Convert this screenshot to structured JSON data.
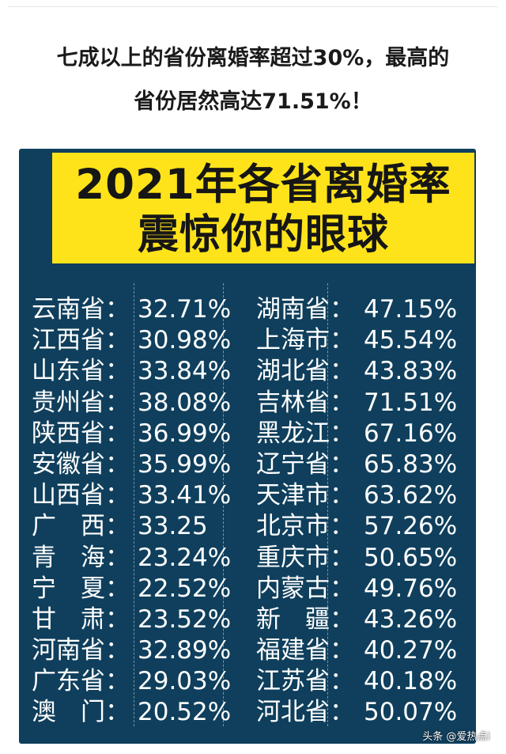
{
  "headline": {
    "line1": "七成以上的省份离婚率超过30%，最高的",
    "line2": "省份居然高达71.51%！"
  },
  "poster": {
    "banner_line1": "2021年各省离婚率",
    "banner_line2": "震惊你的眼球",
    "background_color": "#0f3f5c",
    "banner_color": "#ffe31a",
    "rows": [
      {
        "left_name": "云南省：",
        "left_value": "32.71%",
        "right_name": "湖南省：",
        "right_value": "47.15%"
      },
      {
        "left_name": "江西省：",
        "left_value": "30.98%",
        "right_name": "上海市：",
        "right_value": "45.54%"
      },
      {
        "left_name": "山东省：",
        "left_value": "33.84%",
        "right_name": "湖北省：",
        "right_value": "43.83%"
      },
      {
        "left_name": "贵州省：",
        "left_value": "38.08%",
        "right_name": "吉林省：",
        "right_value": "71.51%"
      },
      {
        "left_name": "陕西省：",
        "left_value": "36.99%",
        "right_name": "黑龙江：",
        "right_value": "67.16%"
      },
      {
        "left_name": "安徽省：",
        "left_value": "35.99%",
        "right_name": "辽宁省：",
        "right_value": "65.83%"
      },
      {
        "left_name": "山西省：",
        "left_value": "33.41%",
        "right_name": "天津市：",
        "right_value": "63.62%"
      },
      {
        "left_name": "广　西：",
        "left_value": "33.25",
        "right_name": "北京市：",
        "right_value": "57.26%"
      },
      {
        "left_name": "青　海：",
        "left_value": "23.24%",
        "right_name": "重庆市：",
        "right_value": "50.65%"
      },
      {
        "left_name": "宁　夏：",
        "left_value": "22.52%",
        "right_name": "内蒙古：",
        "right_value": "49.76%"
      },
      {
        "left_name": "甘　肃：",
        "left_value": "23.52%",
        "right_name": "新　疆：",
        "right_value": "43.26%"
      },
      {
        "left_name": "河南省：",
        "left_value": "32.89%",
        "right_name": "福建省：",
        "right_value": "40.27%"
      },
      {
        "left_name": "广东省：",
        "left_value": "29.03%",
        "right_name": "江苏省：",
        "right_value": "40.18%"
      },
      {
        "left_name": "澳　门：",
        "left_value": "20.52%",
        "right_name": "河北省：",
        "right_value": "50.07%"
      }
    ]
  },
  "watermark": "头条 @爱热点i"
}
